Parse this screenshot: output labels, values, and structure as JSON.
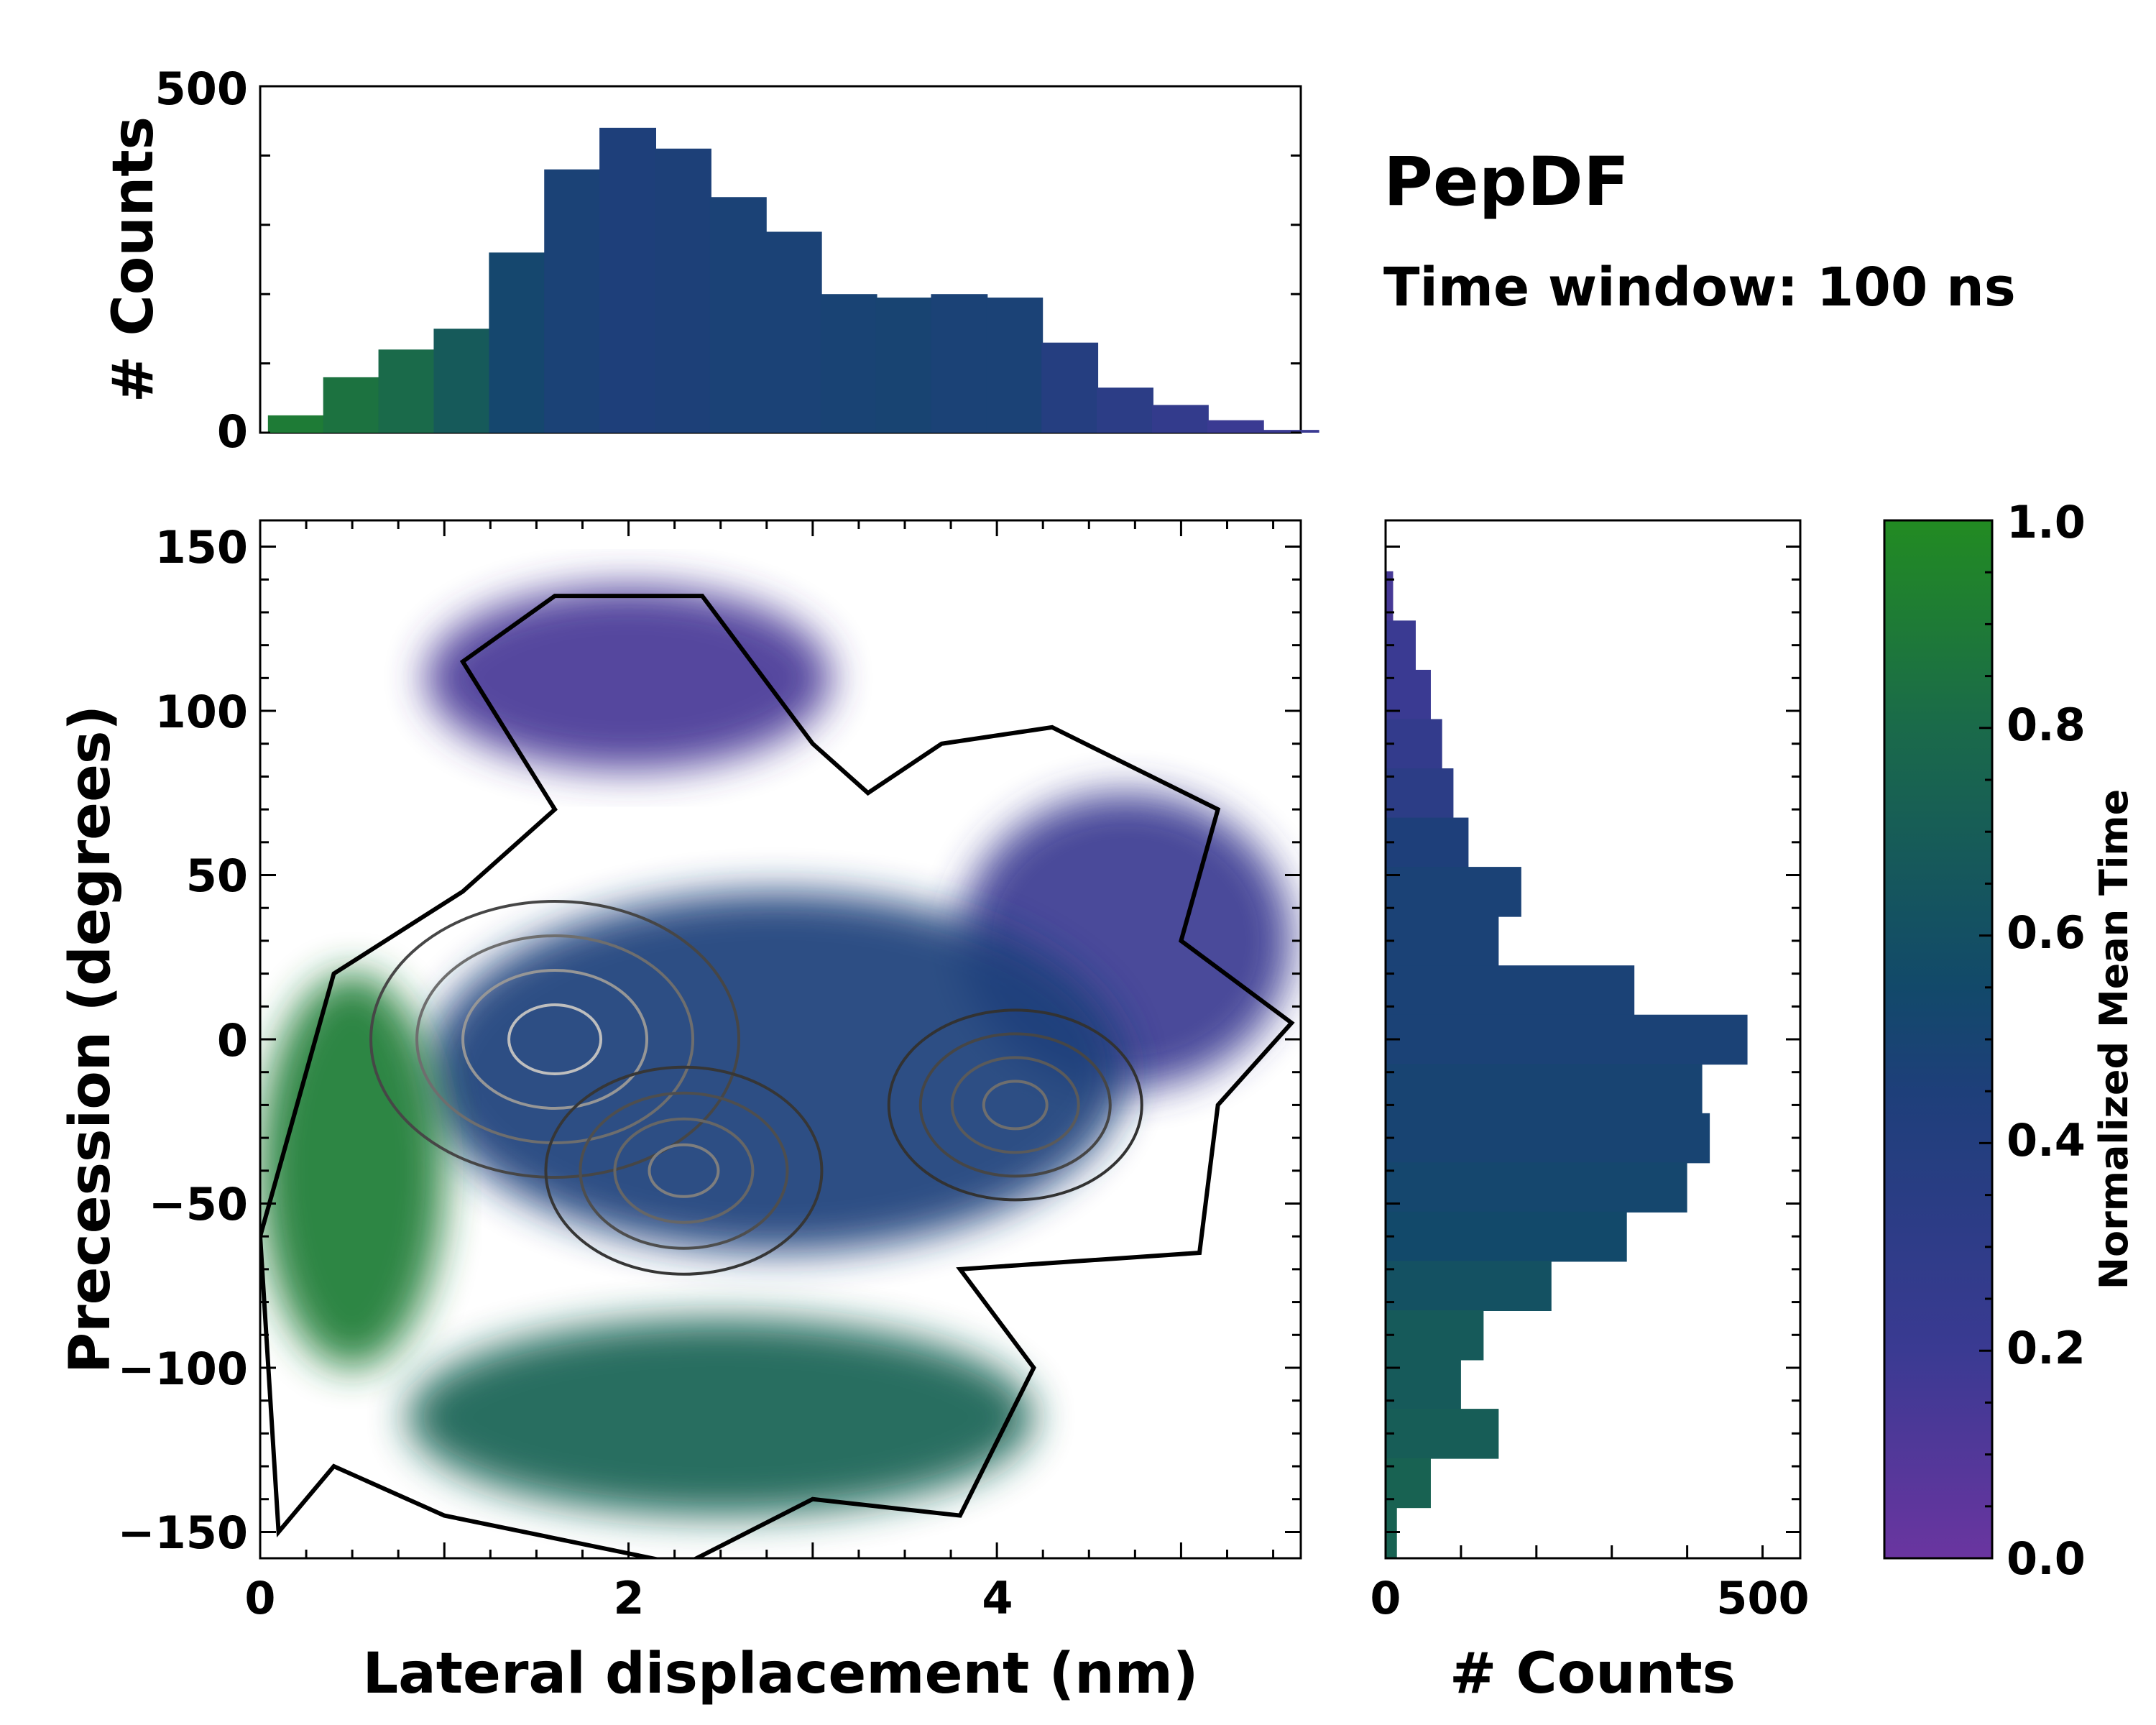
{
  "chart_data": {
    "type": "heatmap",
    "title": "PepDF",
    "subtitle": "Time window: 100 ns",
    "main": {
      "xlabel": "Lateral displacement (nm)",
      "ylabel": "Precession (degrees)",
      "xlim": [
        0,
        5.65
      ],
      "ylim": [
        -158,
        158
      ],
      "xticks": [
        "0",
        "2",
        "4"
      ],
      "yticks": [
        "150",
        "100",
        "50",
        "0",
        "−50",
        "−100",
        "−150"
      ],
      "xtick_values": [
        0,
        2,
        4
      ],
      "ytick_values": [
        150,
        100,
        50,
        0,
        -50,
        -100,
        -150
      ],
      "regions": [
        {
          "name": "violet-upper-lobe",
          "cx": 2.0,
          "cy": 110,
          "rx": 1.1,
          "ry": 28,
          "value": 0.15
        },
        {
          "name": "violet-right-lobe",
          "cx": 4.7,
          "cy": 30,
          "rx": 0.9,
          "ry": 45,
          "value": 0.2
        },
        {
          "name": "blue-core",
          "cx": 2.8,
          "cy": -10,
          "rx": 1.9,
          "ry": 55,
          "value": 0.4
        },
        {
          "name": "green-left",
          "cx": 0.5,
          "cy": -40,
          "rx": 0.5,
          "ry": 60,
          "value": 0.9
        },
        {
          "name": "green-lower",
          "cx": 2.5,
          "cy": -115,
          "rx": 1.7,
          "ry": 30,
          "value": 0.75
        }
      ],
      "density_peaks": [
        {
          "x": 1.6,
          "y": 0,
          "level": 1.0
        },
        {
          "x": 2.3,
          "y": -40,
          "level": 0.6
        },
        {
          "x": 4.1,
          "y": -20,
          "level": 0.5
        }
      ]
    },
    "top_histogram": {
      "ylabel": "# Counts",
      "ylim": [
        0,
        500
      ],
      "yticks": [
        "500",
        "0"
      ],
      "ytick_values": [
        500,
        0
      ],
      "x": [
        0.05,
        0.35,
        0.65,
        0.95,
        1.25,
        1.55,
        1.85,
        2.15,
        2.45,
        2.75,
        3.05,
        3.35,
        3.65,
        3.95,
        4.25,
        4.55,
        4.85,
        5.15,
        5.45
      ],
      "values": [
        25,
        80,
        120,
        150,
        260,
        380,
        440,
        410,
        340,
        290,
        200,
        195,
        200,
        195,
        130,
        65,
        40,
        18,
        4
      ],
      "colors": [
        0.9,
        0.85,
        0.8,
        0.7,
        0.55,
        0.45,
        0.4,
        0.42,
        0.45,
        0.45,
        0.48,
        0.5,
        0.45,
        0.45,
        0.35,
        0.3,
        0.25,
        0.2,
        0.2
      ]
    },
    "right_histogram": {
      "xlabel": "# Counts",
      "xlim": [
        0,
        550
      ],
      "xticks": [
        "0",
        "500"
      ],
      "xtick_values": [
        0,
        500
      ],
      "y": [
        135,
        120,
        105,
        90,
        75,
        60,
        45,
        30,
        15,
        0,
        -15,
        -30,
        -45,
        -60,
        -75,
        -90,
        -105,
        -120,
        -135,
        -150
      ],
      "values": [
        10,
        40,
        60,
        75,
        90,
        110,
        180,
        150,
        330,
        480,
        420,
        430,
        400,
        320,
        220,
        130,
        100,
        150,
        60,
        15
      ],
      "colors": [
        0.15,
        0.2,
        0.2,
        0.25,
        0.3,
        0.4,
        0.45,
        0.45,
        0.45,
        0.45,
        0.5,
        0.5,
        0.55,
        0.6,
        0.65,
        0.7,
        0.7,
        0.72,
        0.75,
        0.75
      ]
    },
    "colorbar": {
      "label": "Normalized Mean Time",
      "ticks": [
        "1.0",
        "0.8",
        "0.6",
        "0.4",
        "0.2",
        "0.0"
      ],
      "tick_values": [
        1.0,
        0.8,
        0.6,
        0.4,
        0.2,
        0.0
      ],
      "colormap": [
        "#6a35a0",
        "#3a3a92",
        "#1e3f7a",
        "#12496a",
        "#1a6a4a",
        "#228b22"
      ]
    }
  }
}
